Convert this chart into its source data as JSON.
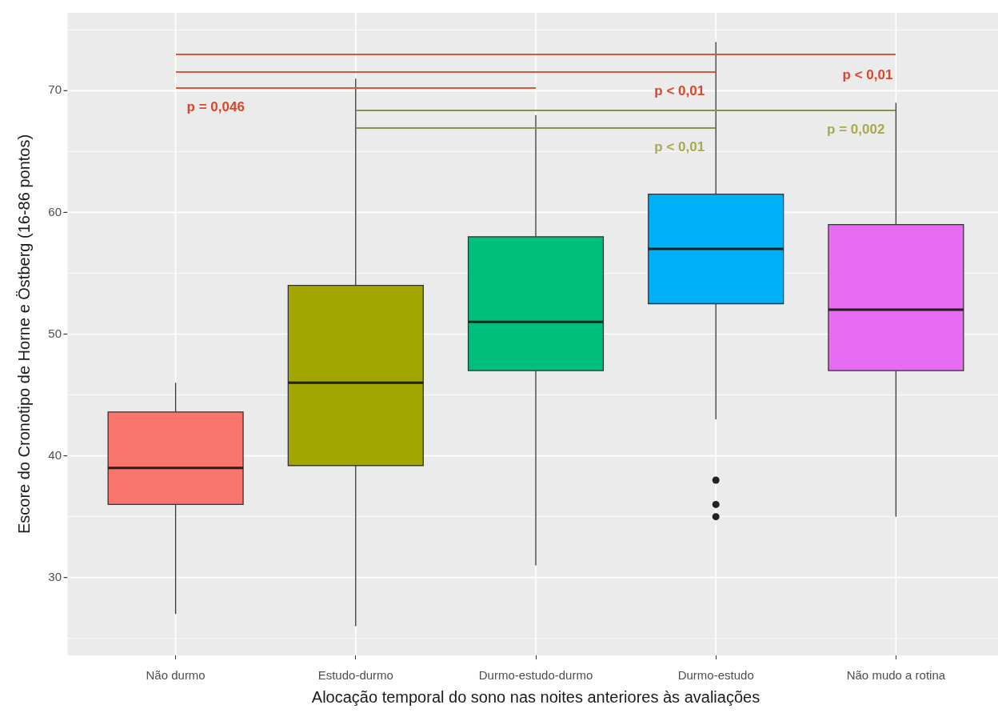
{
  "chart_data": {
    "type": "box",
    "xlabel": "Alocação temporal do sono nas noites anteriores às avaliações",
    "ylabel": "Escore do Cronotipo de Horne e Östberg (16-86 pontos)",
    "categories": [
      "Não durmo",
      "Estudo-durmo",
      "Durmo-estudo-durmo",
      "Durmo-estudo",
      "Não mudo a rotina"
    ],
    "boxes": [
      {
        "low": 27,
        "q1": 36,
        "median": 39,
        "q3": 43.6,
        "high": 46
      },
      {
        "low": 26,
        "q1": 39.2,
        "median": 46,
        "q3": 54,
        "high": 71
      },
      {
        "low": 31,
        "q1": 47,
        "median": 51,
        "q3": 58,
        "high": 68
      },
      {
        "low": 43,
        "q1": 52.5,
        "median": 57,
        "q3": 61.5,
        "high": 74,
        "outliers": [
          38,
          36,
          35
        ]
      },
      {
        "low": 35,
        "q1": 47,
        "median": 52,
        "q3": 59,
        "high": 69
      }
    ],
    "colors": [
      "#f8766d",
      "#a3a500",
      "#00bf7d",
      "#00b0f6",
      "#e76bf3"
    ],
    "ylim": [
      23.6,
      76.4
    ],
    "yticks": [
      30,
      40,
      50,
      60,
      70
    ],
    "grid": true,
    "annotations": [
      "p < 0,01",
      "p < 0,01",
      "p = 0,046",
      "p = 0,002",
      "p < 0,01"
    ]
  }
}
